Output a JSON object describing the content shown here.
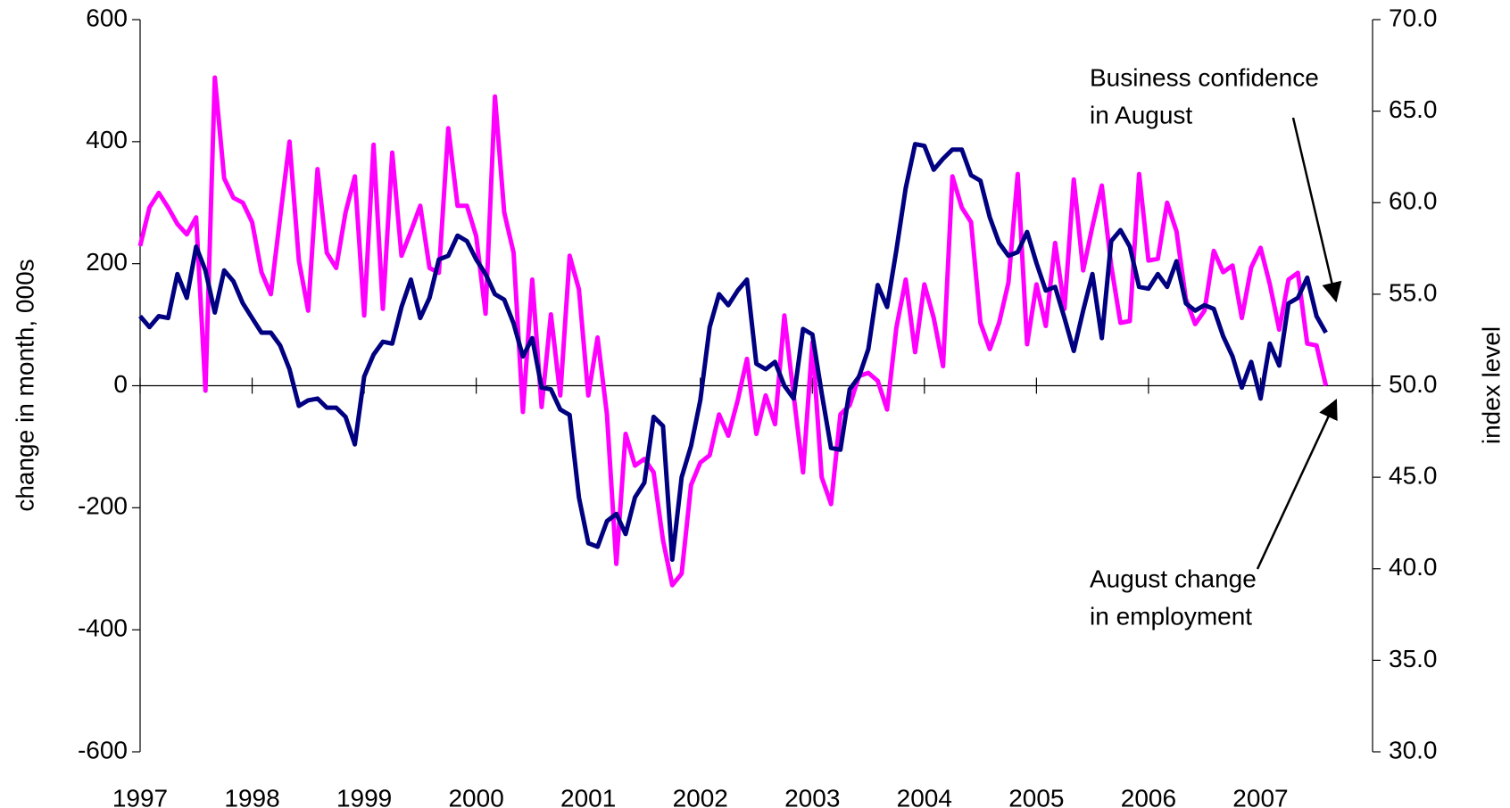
{
  "chart_data": {
    "type": "line",
    "y_label": "change in month, 000s",
    "y2_label": "index level",
    "categories": [
      "1997",
      null,
      null,
      null,
      null,
      null,
      null,
      null,
      null,
      null,
      null,
      null,
      "1998",
      null,
      null,
      null,
      null,
      null,
      null,
      null,
      null,
      null,
      null,
      null,
      "1999",
      null,
      null,
      null,
      null,
      null,
      null,
      null,
      null,
      null,
      null,
      null,
      "2000",
      null,
      null,
      null,
      null,
      null,
      null,
      null,
      null,
      null,
      null,
      null,
      "2001",
      null,
      null,
      null,
      null,
      null,
      null,
      null,
      null,
      null,
      null,
      null,
      "2002",
      null,
      null,
      null,
      null,
      null,
      null,
      null,
      null,
      null,
      null,
      null,
      "2003",
      null,
      null,
      null,
      null,
      null,
      null,
      null,
      null,
      null,
      null,
      null,
      "2004",
      null,
      null,
      null,
      null,
      null,
      null,
      null,
      null,
      null,
      null,
      null,
      "2005",
      null,
      null,
      null,
      null,
      null,
      null,
      null,
      null,
      null,
      null,
      null,
      "2006",
      null,
      null,
      null,
      null,
      null,
      null,
      null,
      null,
      null,
      null,
      null,
      "2007",
      null,
      null,
      null,
      null,
      null,
      null,
      null
    ],
    "series": [
      {
        "name": "August change in employment",
        "color": "#ff00ff",
        "axis": "y",
        "values": [
          229,
          292,
          316,
          292,
          265,
          248,
          276,
          -8,
          505,
          340,
          308,
          300,
          268,
          186,
          150,
          276,
          400,
          205,
          123,
          355,
          218,
          193,
          284,
          343,
          115,
          395,
          126,
          382,
          213,
          253,
          295,
          193,
          185,
          422,
          295,
          295,
          245,
          118,
          474,
          284,
          218,
          -43,
          174,
          -35,
          117,
          -16,
          213,
          158,
          -16,
          79,
          -47,
          -292,
          -79,
          -131,
          -120,
          -142,
          -253,
          -327,
          -308,
          -163,
          -126,
          -114,
          -47,
          -82,
          -24,
          44,
          -79,
          -16,
          -63,
          115,
          -16,
          -142,
          71,
          -150,
          -194,
          -47,
          -32,
          16,
          21,
          8,
          -39,
          95,
          174,
          55,
          166,
          111,
          32,
          343,
          292,
          268,
          103,
          60,
          103,
          169,
          347,
          68,
          166,
          98,
          234,
          126,
          338,
          189,
          261,
          328,
          197,
          103,
          106,
          347,
          205,
          208,
          300,
          253,
          142,
          101,
          123,
          221,
          186,
          197,
          111,
          194,
          226,
          166,
          92,
          174,
          185,
          69,
          66,
          0
        ]
      },
      {
        "name": "Business confidence in August",
        "color": "#000080",
        "axis": "y2",
        "values": [
          53.8,
          53.2,
          53.8,
          53.7,
          56.1,
          54.8,
          57.6,
          56.3,
          54.0,
          56.3,
          55.7,
          54.5,
          53.7,
          52.9,
          52.9,
          52.2,
          50.9,
          48.9,
          49.2,
          49.3,
          48.8,
          48.8,
          48.3,
          46.8,
          50.5,
          51.7,
          52.4,
          52.3,
          54.3,
          55.8,
          53.7,
          54.8,
          56.9,
          57.1,
          58.2,
          57.9,
          56.9,
          56.1,
          55.0,
          54.7,
          53.4,
          51.6,
          52.6,
          49.9,
          49.8,
          48.7,
          48.4,
          43.9,
          41.4,
          41.2,
          42.6,
          43.0,
          41.9,
          43.9,
          44.7,
          48.3,
          47.8,
          40.5,
          45.0,
          46.7,
          49.2,
          53.2,
          55.0,
          54.4,
          55.2,
          55.8,
          51.2,
          50.9,
          51.3,
          50.0,
          49.3,
          53.1,
          52.8,
          49.6,
          46.6,
          46.5,
          49.8,
          50.5,
          52.0,
          55.5,
          54.3,
          57.4,
          60.8,
          63.2,
          63.1,
          61.8,
          62.4,
          62.9,
          62.9,
          61.5,
          61.2,
          59.2,
          57.8,
          57.1,
          57.3,
          58.4,
          56.7,
          55.2,
          55.4,
          53.7,
          51.9,
          54.1,
          56.1,
          52.6,
          57.9,
          58.5,
          57.6,
          55.4,
          55.3,
          56.1,
          55.4,
          56.8,
          54.5,
          54.1,
          54.4,
          54.2,
          52.7,
          51.6,
          49.9,
          51.3,
          49.3,
          52.3,
          51.1,
          54.5,
          54.8,
          55.9,
          53.8,
          52.9
        ]
      }
    ],
    "annotations": [
      {
        "text": [
          "Business confidence",
          "in August"
        ]
      },
      {
        "text": [
          "August change",
          "in employment"
        ]
      }
    ],
    "ylim": [
      -600,
      600
    ],
    "yticks": [
      -600,
      -400,
      -200,
      0,
      200,
      400,
      600
    ],
    "y2lim": [
      30,
      70
    ],
    "y2ticks": [
      {
        "value": 30,
        "label": "30.0"
      },
      {
        "value": 35,
        "label": "35.0"
      },
      {
        "value": 40,
        "label": "40.0"
      },
      {
        "value": 45,
        "label": "45.0"
      },
      {
        "value": 50,
        "label": "50.0"
      },
      {
        "value": 55,
        "label": "55.0"
      },
      {
        "value": 60,
        "label": "60.0"
      },
      {
        "value": 65,
        "label": "65.0"
      },
      {
        "value": 70,
        "label": "70.0"
      }
    ],
    "grid": false
  }
}
